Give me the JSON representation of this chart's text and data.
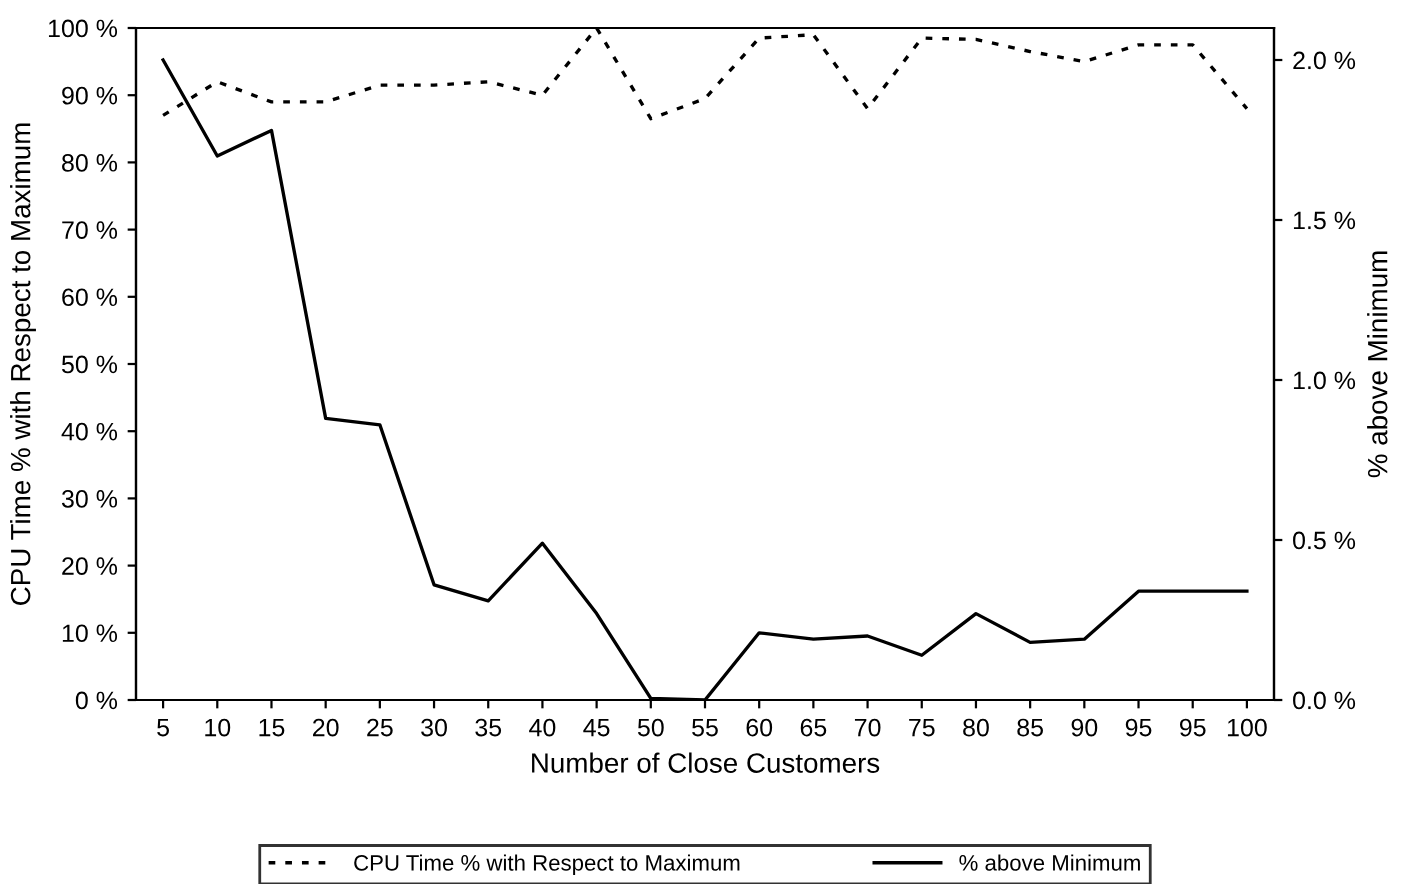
{
  "chart_data": {
    "type": "line",
    "xlabel": "Number of Close Customers",
    "ylabel": "CPU Time % with Respect to Maximum",
    "y2label": "% above Minimum",
    "categories": [
      "5",
      "10",
      "15",
      "20",
      "25",
      "30",
      "35",
      "40",
      "45",
      "50",
      "55",
      "60",
      "65",
      "70",
      "75",
      "80",
      "85",
      "90",
      "95",
      "95",
      "100"
    ],
    "series": [
      {
        "name": "CPU Time % with Respect to Maximum",
        "color": "#000000",
        "line_style": "dotted",
        "values": [
          87,
          92,
          89,
          89,
          91.5,
          91.5,
          92,
          90,
          100,
          86.5,
          89.5,
          98.5,
          99,
          88,
          98.5,
          98.3,
          96.5,
          95,
          97.5,
          97.5,
          88
        ]
      },
      {
        "name": "% above Minimum",
        "color": "#000000",
        "line_style": "solid",
        "axis": "y2",
        "values": [
          2.0,
          1.7,
          1.78,
          0.88,
          0.86,
          0.36,
          0.31,
          0.49,
          0.27,
          0.005,
          0.0,
          0.21,
          0.19,
          0.2,
          0.14,
          0.27,
          0.18,
          0.19,
          0.34,
          0.34,
          0.34
        ]
      }
    ],
    "ylim": [
      0,
      100
    ],
    "yticks": [
      {
        "value": 0,
        "label": "0 %"
      },
      {
        "value": 10,
        "label": "10 %"
      },
      {
        "value": 20,
        "label": "20 %"
      },
      {
        "value": 30,
        "label": "30 %"
      },
      {
        "value": 40,
        "label": "40 %"
      },
      {
        "value": 50,
        "label": "50 %"
      },
      {
        "value": 60,
        "label": "60 %"
      },
      {
        "value": 70,
        "label": "70 %"
      },
      {
        "value": 80,
        "label": "80 %"
      },
      {
        "value": 90,
        "label": "90 %"
      },
      {
        "value": 100,
        "label": "100 %"
      }
    ],
    "y2lim": [
      0,
      2.1
    ],
    "y2ticks": [
      {
        "value": 0,
        "label": "0.0 %"
      },
      {
        "value": 0.5,
        "label": "0.5 %"
      },
      {
        "value": 1.0,
        "label": "1.0 %"
      },
      {
        "value": 1.5,
        "label": "1.5 %"
      },
      {
        "value": 2.0,
        "label": "2.0 %"
      }
    ],
    "grid": false,
    "legend": "bottom",
    "marker": "none"
  }
}
